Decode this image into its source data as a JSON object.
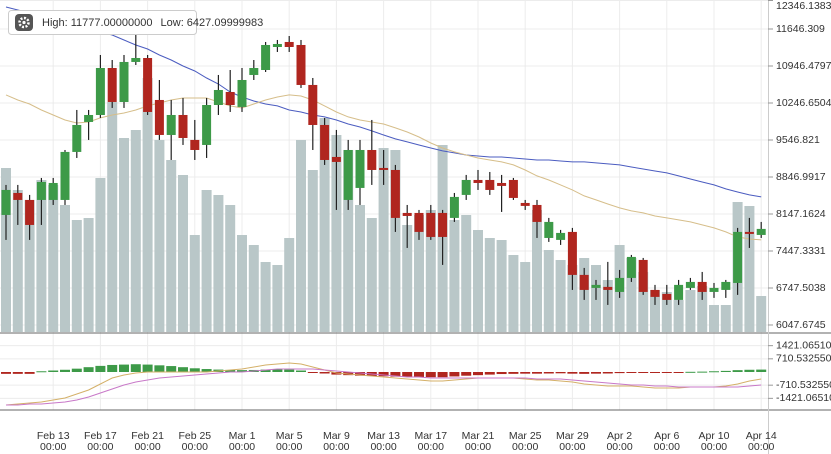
{
  "chart_data": {
    "type": "candlestick",
    "high_label": "High: 11777.00000000",
    "low_label": "Low: 6427.09999983",
    "categories": [
      null,
      null,
      null,
      null,
      "Feb 13",
      null,
      null,
      null,
      "Feb 17",
      null,
      null,
      null,
      "Feb 21",
      null,
      null,
      null,
      "Feb 25",
      null,
      null,
      null,
      "Mar 1",
      null,
      null,
      null,
      "Mar 5",
      null,
      null,
      null,
      "Mar 9",
      null,
      null,
      null,
      "Mar 13",
      null,
      null,
      null,
      "Mar 17",
      null,
      null,
      null,
      "Mar 21",
      null,
      null,
      null,
      "Mar 25",
      null,
      null,
      null,
      "Mar 29",
      null,
      null,
      null,
      "Apr 2",
      null,
      null,
      null,
      "Apr 6",
      null,
      null,
      null,
      "Apr 10",
      null,
      null,
      null,
      "Apr 14"
    ],
    "category_times": [
      null,
      null,
      null,
      null,
      "00:00",
      null,
      null,
      null,
      "00:00",
      null,
      null,
      null,
      "00:00",
      null,
      null,
      null,
      "00:00",
      null,
      null,
      null,
      "00:00",
      null,
      null,
      null,
      "00:00",
      null,
      null,
      null,
      "00:00",
      null,
      null,
      null,
      "00:00",
      null,
      null,
      null,
      "00:00",
      null,
      null,
      null,
      "00:00",
      null,
      null,
      null,
      "00:00",
      null,
      null,
      null,
      "00:00",
      null,
      null,
      null,
      "00:00",
      null,
      null,
      null,
      "00:00",
      null,
      null,
      null,
      "00:00",
      null,
      null,
      null,
      "00:00"
    ],
    "up_color": "#3d9a48",
    "down_color": "#b0261f",
    "ohlc": [
      [
        8129,
        8697,
        7657,
        8602
      ],
      [
        8545,
        8697,
        7940,
        8413
      ],
      [
        8413,
        8508,
        7657,
        7940
      ],
      [
        8413,
        8829,
        7940,
        8753
      ],
      [
        8413,
        8829,
        8318,
        8734
      ],
      [
        8413,
        9358,
        8318,
        9321
      ],
      [
        9321,
        10115,
        9207,
        9831
      ],
      [
        9888,
        10115,
        9548,
        10020
      ],
      [
        10020,
        11155,
        9964,
        10909
      ],
      [
        10909,
        11060,
        10153,
        10266
      ],
      [
        10266,
        11155,
        10153,
        11023
      ],
      [
        11023,
        11777,
        10966,
        11098
      ],
      [
        11098,
        11155,
        10020,
        10077
      ],
      [
        10304,
        10682,
        9548,
        9642
      ],
      [
        9642,
        10304,
        9169,
        10020
      ],
      [
        10020,
        10342,
        9453,
        9585
      ],
      [
        9548,
        9926,
        9169,
        9358
      ],
      [
        9453,
        10342,
        9207,
        10209
      ],
      [
        10209,
        10777,
        10020,
        10493
      ],
      [
        10455,
        10871,
        10077,
        10209
      ],
      [
        10172,
        10909,
        10077,
        10682
      ],
      [
        10777,
        11060,
        10682,
        10909
      ],
      [
        10871,
        11401,
        10833,
        11344
      ],
      [
        11306,
        11439,
        11212,
        11363
      ],
      [
        11401,
        11514,
        11212,
        11306
      ],
      [
        11344,
        11439,
        10531,
        10588
      ],
      [
        10588,
        10720,
        9358,
        9831
      ],
      [
        9831,
        9964,
        9075,
        9169
      ],
      [
        9226,
        9737,
        8224,
        9132
      ],
      [
        8413,
        9548,
        8224,
        9358
      ],
      [
        8640,
        9548,
        8318,
        9358
      ],
      [
        9358,
        9926,
        8697,
        8980
      ],
      [
        9018,
        9358,
        8697,
        8980
      ],
      [
        8980,
        9075,
        7808,
        8073
      ],
      [
        8167,
        8318,
        7505,
        8110
      ],
      [
        8167,
        8224,
        7657,
        7808
      ],
      [
        8167,
        8318,
        7657,
        7713
      ],
      [
        8167,
        8224,
        7184,
        7713
      ],
      [
        8073,
        8545,
        7997,
        8470
      ],
      [
        8508,
        8886,
        8413,
        8791
      ],
      [
        8791,
        8980,
        8602,
        8734
      ],
      [
        8791,
        8942,
        8508,
        8602
      ],
      [
        8734,
        8886,
        8186,
        8678
      ],
      [
        8791,
        8829,
        8413,
        8451
      ],
      [
        8356,
        8413,
        8224,
        8300
      ],
      [
        8318,
        8413,
        7694,
        7997
      ],
      [
        7694,
        8073,
        7619,
        7997
      ],
      [
        7657,
        7846,
        7562,
        7789
      ],
      [
        7808,
        7884,
        6711,
        6995
      ],
      [
        6995,
        7127,
        6522,
        6711
      ],
      [
        6749,
        6900,
        6522,
        6806
      ],
      [
        6768,
        7241,
        6427,
        6711
      ],
      [
        6673,
        7089,
        6560,
        6938
      ],
      [
        6938,
        7373,
        6862,
        7335
      ],
      [
        7278,
        7316,
        6617,
        6673
      ],
      [
        6711,
        6806,
        6427,
        6579
      ],
      [
        6635,
        6806,
        6427,
        6522
      ],
      [
        6522,
        6900,
        6427,
        6806
      ],
      [
        6749,
        6938,
        6711,
        6862
      ],
      [
        6862,
        7051,
        6522,
        6673
      ],
      [
        6673,
        6843,
        6560,
        6749
      ],
      [
        6711,
        6900,
        6560,
        6862
      ],
      [
        6843,
        7884,
        6617,
        7808
      ],
      [
        7808,
        8073,
        7505,
        7770
      ],
      [
        7751,
        7997,
        7694,
        7865
      ]
    ],
    "ylim": [
      5915,
      12195
    ],
    "yticks": [
      12346.1383,
      11646.309,
      10946.4797,
      10246.6504,
      9546.821,
      8846.9917,
      8147.1624,
      7447.3331,
      6747.5038,
      6047.6745
    ],
    "grid": true,
    "volume_color": "#b9c7c8",
    "volume_lim": [
      0,
      332
    ],
    "volume": [
      164,
      142,
      132,
      152,
      147,
      127,
      112,
      114,
      154,
      230,
      194,
      202,
      254,
      192,
      172,
      157,
      97,
      142,
      137,
      127,
      97,
      87,
      70,
      67,
      94,
      192,
      162,
      214,
      197,
      182,
      127,
      114,
      184,
      182,
      107,
      117,
      122,
      187,
      112,
      117,
      102,
      94,
      92,
      77,
      70,
      122,
      82,
      72,
      67,
      74,
      67,
      52,
      87,
      74,
      60,
      42,
      40,
      32,
      42,
      46,
      27,
      27,
      130,
      126,
      36
    ],
    "series": [
      {
        "color": "#4b5cc0",
        "values": [
          12063,
          12006,
          11949,
          11874,
          11817,
          11741,
          11684,
          11628,
          11590,
          11533,
          11439,
          11344,
          11268,
          11155,
          11060,
          10947,
          10852,
          10720,
          10607,
          10455,
          10361,
          10285,
          10228,
          10191,
          10115,
          10077,
          10020,
          9983,
          9926,
          9850,
          9793,
          9718,
          9642,
          9567,
          9510,
          9453,
          9396,
          9340,
          9302,
          9264,
          9245,
          9226,
          9226,
          9207,
          9188,
          9169,
          9169,
          9150,
          9132,
          9132,
          9113,
          9094,
          9075,
          9037,
          8999,
          8961,
          8924,
          8867,
          8810,
          8753,
          8697,
          8621,
          8564,
          8508,
          8470
        ]
      },
      {
        "color": "#d6be8a",
        "values": [
          10399,
          10304,
          10228,
          10115,
          10020,
          9926,
          9869,
          9888,
          9964,
          10020,
          10058,
          10115,
          10191,
          10247,
          10304,
          10342,
          10342,
          10342,
          10266,
          10191,
          10153,
          10228,
          10304,
          10361,
          10399,
          10380,
          10304,
          10191,
          10077,
          9983,
          9926,
          9888,
          9850,
          9775,
          9699,
          9604,
          9491,
          9396,
          9321,
          9264,
          9207,
          9169,
          9132,
          9075,
          8980,
          8867,
          8791,
          8697,
          8602,
          8489,
          8413,
          8337,
          8262,
          8205,
          8167,
          8110,
          8073,
          8035,
          7997,
          7940,
          7884,
          7808,
          7713,
          7675,
          7657
        ]
      }
    ],
    "macd_ylim": [
      -2050,
      2050
    ],
    "macd_yticks": [
      {
        "value": 1421.0651,
        "label": "1421.06510"
      },
      {
        "value": 710.53255,
        "label": "710.532550"
      },
      {
        "value": -710.53255,
        "label": "-710.532550"
      },
      {
        "value": -1421.0651,
        "label": "-1421.06510"
      }
    ],
    "macd_histogram": [
      -100,
      -100,
      -100,
      40,
      80,
      120,
      180,
      260,
      330,
      380,
      400,
      420,
      400,
      360,
      320,
      260,
      200,
      160,
      130,
      110,
      100,
      110,
      130,
      140,
      130,
      80,
      -20,
      -80,
      -140,
      -170,
      -200,
      -220,
      -230,
      -250,
      -260,
      -270,
      -280,
      -280,
      -240,
      -200,
      -170,
      -140,
      -110,
      -100,
      -90,
      -90,
      -80,
      -70,
      -90,
      -100,
      -90,
      -80,
      -60,
      -40,
      -40,
      -40,
      -30,
      -20,
      10,
      20,
      40,
      60,
      100,
      120,
      130
    ],
    "macd_series": [
      {
        "color": "#d4b068",
        "values": [
          -1782,
          -1728,
          -1674,
          -1620,
          -1512,
          -1404,
          -1188,
          -972,
          -648,
          -324,
          -162,
          -54,
          0,
          0,
          0,
          0,
          0,
          0,
          54,
          108,
          162,
          270,
          378,
          432,
          486,
          432,
          270,
          108,
          -54,
          -108,
          -162,
          -216,
          -270,
          -324,
          -378,
          -432,
          -486,
          -486,
          -432,
          -378,
          -324,
          -324,
          -324,
          -324,
          -378,
          -432,
          -432,
          -486,
          -540,
          -648,
          -702,
          -756,
          -756,
          -756,
          -810,
          -864,
          -864,
          -864,
          -810,
          -810,
          -810,
          -756,
          -648,
          -486,
          -378
        ]
      },
      {
        "color": "#c878c8",
        "values": [
          -1782,
          -1782,
          -1728,
          -1728,
          -1674,
          -1620,
          -1512,
          -1350,
          -1134,
          -918,
          -702,
          -540,
          -432,
          -324,
          -270,
          -216,
          -162,
          -108,
          -54,
          0,
          0,
          54,
          108,
          162,
          162,
          162,
          162,
          108,
          54,
          0,
          -54,
          -108,
          -162,
          -216,
          -270,
          -270,
          -324,
          -324,
          -324,
          -324,
          -324,
          -324,
          -324,
          -324,
          -324,
          -378,
          -378,
          -378,
          -432,
          -486,
          -540,
          -594,
          -648,
          -702,
          -702,
          -756,
          -756,
          -810,
          -810,
          -810,
          -810,
          -810,
          -810,
          -756,
          -702
        ]
      }
    ]
  }
}
